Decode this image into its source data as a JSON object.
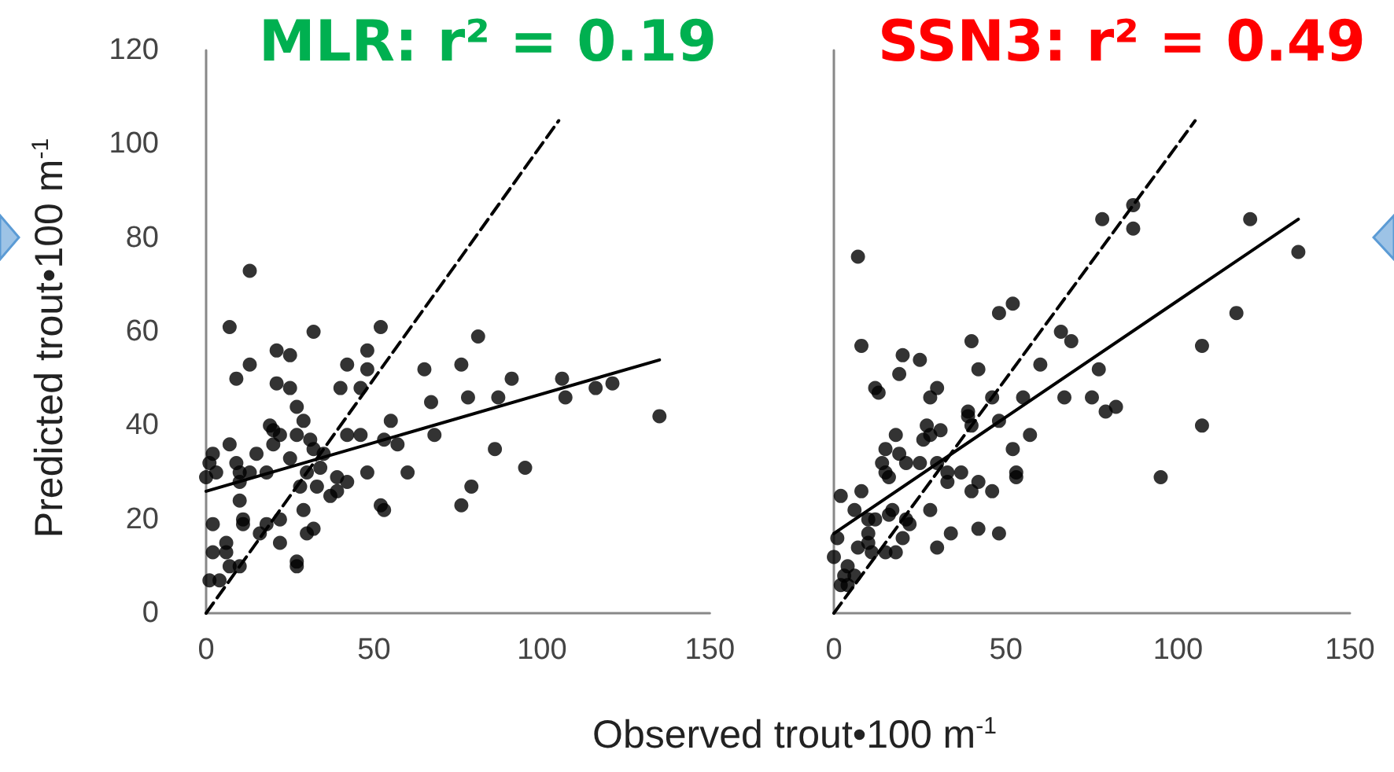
{
  "chart_data": [
    {
      "type": "scatter",
      "title": "MLR: r² = 0.19",
      "ylabel": "Predicted trout•100 m$^{-1}$",
      "xlabel": "Observed trout•100 m$^{-1}$",
      "xlim": [
        0,
        150
      ],
      "xticks": [
        0,
        50,
        100,
        150
      ],
      "ylim": [
        0,
        120
      ],
      "yticks": [
        0,
        20,
        40,
        60,
        80,
        100,
        120
      ],
      "grid": false,
      "series": [
        {
          "marker": "circle",
          "color": "#000000",
          "x": [
            13,
            7,
            32,
            52,
            81,
            21,
            25,
            13,
            9,
            48,
            42,
            48,
            65,
            76,
            21,
            25,
            40,
            46,
            67,
            78,
            27,
            19,
            29,
            20,
            22,
            27,
            31,
            20,
            42,
            46,
            55,
            53,
            57,
            68,
            86,
            2,
            7,
            1,
            9,
            15,
            25,
            32,
            35,
            0,
            3,
            10,
            13,
            18,
            10,
            30,
            34,
            48,
            60,
            39,
            42,
            33,
            28,
            39,
            37,
            79,
            76,
            52,
            53,
            10,
            29,
            22,
            2,
            11,
            11,
            18,
            16,
            32,
            30,
            6,
            22,
            2,
            6,
            7,
            10,
            27,
            27,
            1,
            4,
            91,
            106,
            107,
            116,
            121,
            87,
            135,
            95
          ],
          "values": [
            73,
            61,
            60,
            61,
            59,
            56,
            55,
            53,
            50,
            56,
            53,
            52,
            52,
            53,
            49,
            48,
            48,
            48,
            45,
            46,
            44,
            40,
            41,
            39,
            38,
            38,
            37,
            36,
            38,
            38,
            41,
            37,
            36,
            38,
            35,
            34,
            36,
            32,
            32,
            34,
            33,
            35,
            34,
            29,
            30,
            30,
            30,
            30,
            28,
            30,
            31,
            30,
            30,
            29,
            28,
            27,
            27,
            26,
            25,
            27,
            23,
            23,
            22,
            24,
            22,
            20,
            19,
            20,
            19,
            19,
            17,
            18,
            17,
            15,
            15,
            13,
            13,
            10,
            10,
            11,
            10,
            7,
            7,
            50,
            50,
            46,
            48,
            49,
            46,
            42,
            31
          ]
        },
        {
          "type": "line",
          "marker": "none",
          "line_style": "solid",
          "color": "#000000",
          "x": [
            0,
            135
          ],
          "values": [
            26,
            54
          ]
        },
        {
          "type": "line",
          "marker": "none",
          "line_style": "dashed",
          "color": "#000000",
          "x": [
            0,
            105
          ],
          "values": [
            0,
            105
          ]
        }
      ]
    },
    {
      "type": "scatter",
      "title": "SSN3: r² = 0.49",
      "xlim": [
        0,
        150
      ],
      "xticks": [
        0,
        50,
        100,
        150
      ],
      "ylim": [
        0,
        120
      ],
      "yticks": [
        0,
        20,
        40,
        60,
        80,
        100,
        120
      ],
      "tick_labels": "x",
      "grid": false,
      "series": [
        {
          "marker": "circle",
          "color": "#000000",
          "x": [
            7,
            8,
            52,
            48,
            40,
            42,
            60,
            20,
            25,
            19,
            12,
            13,
            30,
            28,
            46,
            39,
            39,
            55,
            48,
            40,
            31,
            27,
            18,
            26,
            28,
            57,
            15,
            14,
            19,
            21,
            25,
            30,
            15,
            16,
            33,
            33,
            37,
            52,
            53,
            53,
            42,
            40,
            46,
            2,
            8,
            6,
            12,
            16,
            17,
            28,
            21,
            22,
            20,
            10,
            10,
            10,
            7,
            11,
            15,
            18,
            30,
            34,
            42,
            48,
            1,
            0,
            4,
            3,
            6,
            2,
            4,
            78,
            87,
            87,
            121,
            135,
            117,
            107,
            66,
            69,
            77,
            67,
            75,
            79,
            82,
            107,
            95
          ],
          "values": [
            76,
            57,
            66,
            64,
            58,
            52,
            53,
            55,
            54,
            51,
            48,
            47,
            48,
            46,
            46,
            43,
            42,
            46,
            41,
            40,
            39,
            40,
            38,
            37,
            38,
            38,
            35,
            32,
            34,
            32,
            32,
            32,
            30,
            29,
            30,
            28,
            30,
            35,
            30,
            29,
            28,
            26,
            26,
            25,
            26,
            22,
            20,
            21,
            22,
            22,
            20,
            19,
            16,
            20,
            17,
            15,
            14,
            13,
            13,
            13,
            14,
            17,
            18,
            17,
            16,
            12,
            10,
            8,
            8,
            6,
            6,
            84,
            87,
            82,
            84,
            77,
            64,
            57,
            60,
            58,
            52,
            46,
            46,
            43,
            44,
            40,
            29
          ]
        },
        {
          "type": "line",
          "marker": "none",
          "line_style": "solid",
          "color": "#000000",
          "x": [
            0,
            135
          ],
          "values": [
            17,
            84
          ]
        },
        {
          "type": "line",
          "marker": "none",
          "line_style": "dashed",
          "color": "#000000",
          "x": [
            0,
            105
          ],
          "values": [
            0,
            105
          ]
        }
      ]
    }
  ]
}
